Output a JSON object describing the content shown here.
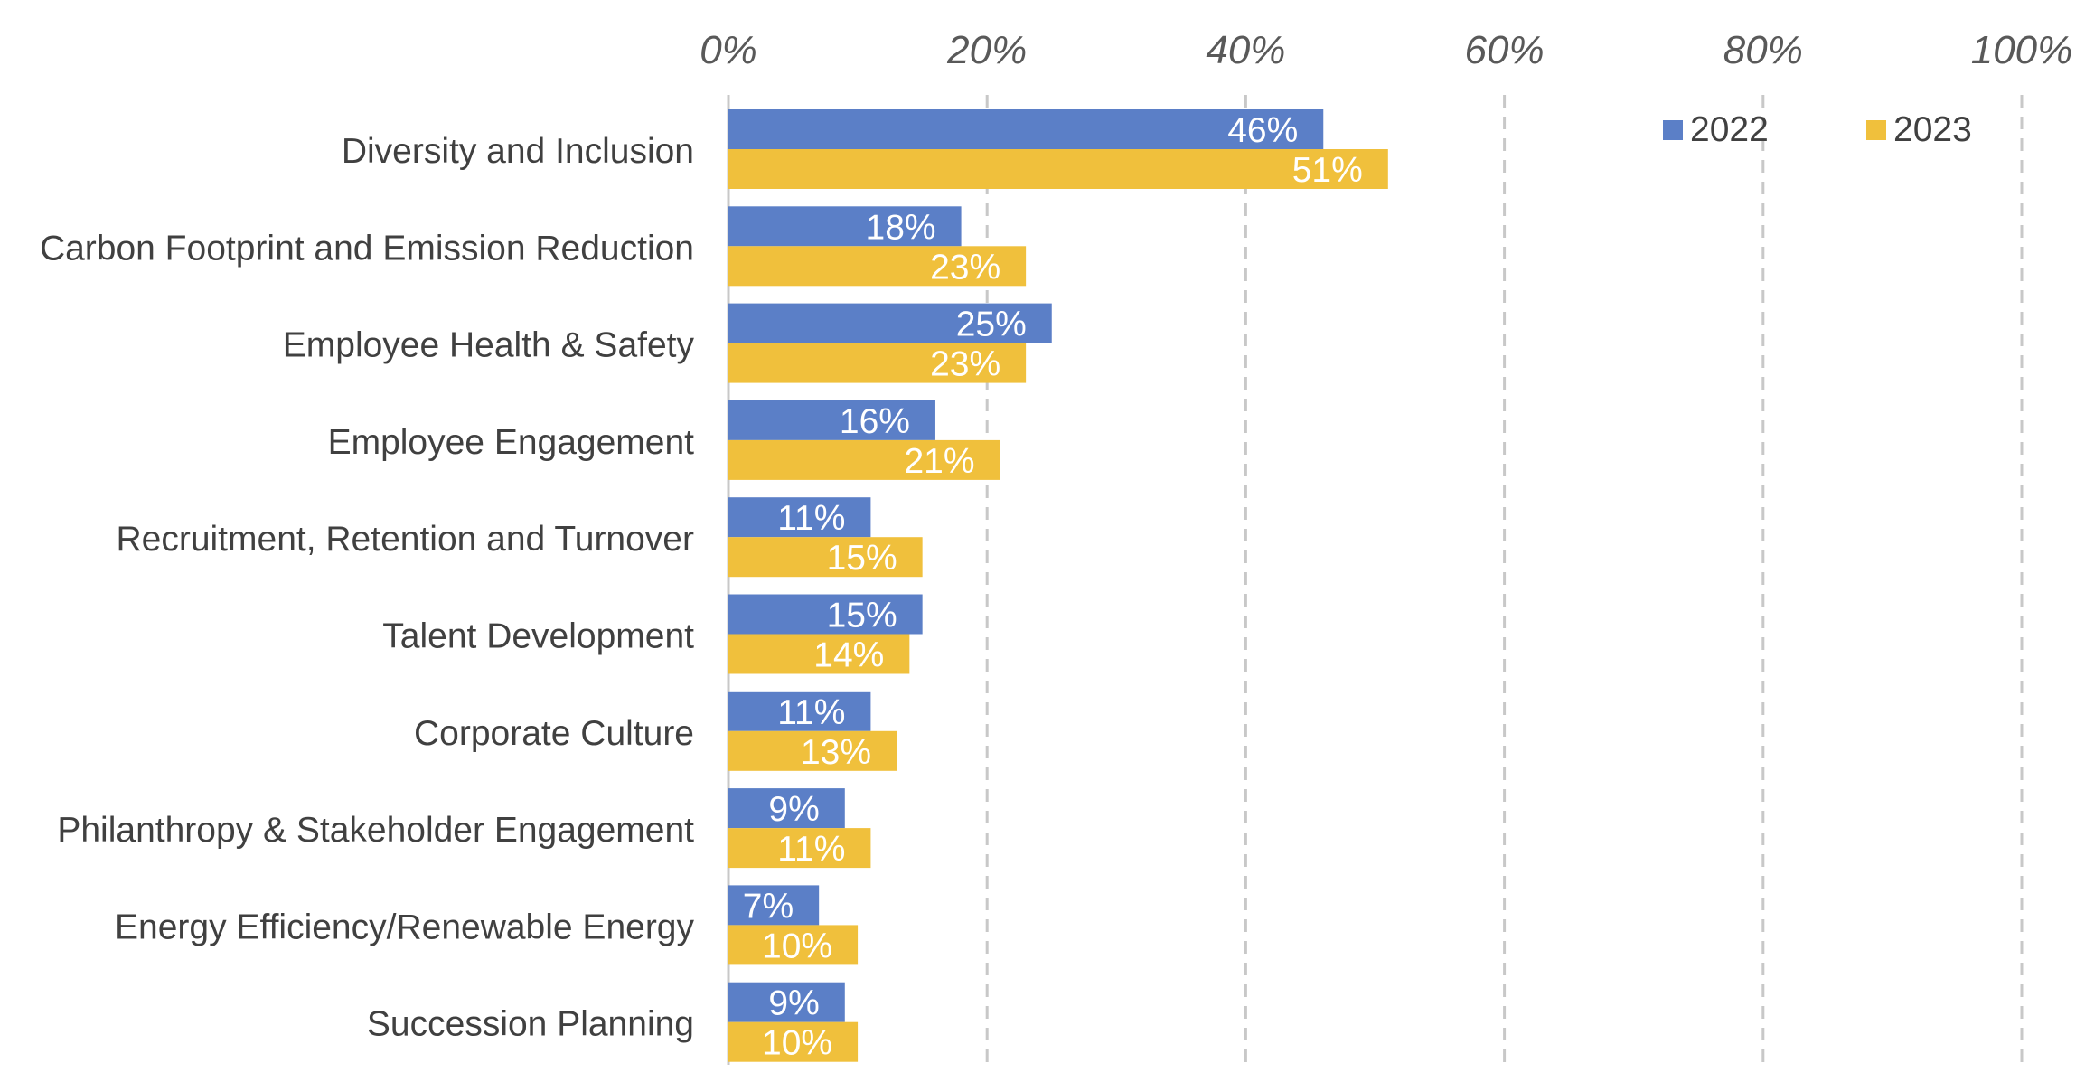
{
  "chart_data": {
    "type": "bar",
    "orientation": "horizontal",
    "categories": [
      "Diversity and Inclusion",
      "Carbon Footprint and Emission Reduction",
      "Employee Health & Safety",
      "Employee Engagement",
      "Recruitment, Retention and Turnover",
      "Talent Development",
      "Corporate Culture",
      "Philanthropy & Stakeholder Engagement",
      "Energy Efficiency/Renewable Energy",
      "Succession Planning"
    ],
    "series": [
      {
        "name": "2022",
        "color": "#5B7FC7",
        "values": [
          46,
          18,
          25,
          16,
          11,
          15,
          11,
          9,
          7,
          9
        ],
        "labels": [
          "46%",
          "18%",
          "25%",
          "16%",
          "11%",
          "15%",
          "11%",
          "9%",
          "7%",
          "9%"
        ]
      },
      {
        "name": "2023",
        "color": "#F0C03C",
        "values": [
          51,
          23,
          23,
          21,
          15,
          14,
          13,
          11,
          10,
          10
        ],
        "labels": [
          "51%",
          "23%",
          "23%",
          "21%",
          "15%",
          "14%",
          "13%",
          "11%",
          "10%",
          "10%"
        ]
      }
    ],
    "xlim": [
      0,
      100
    ],
    "xticks": [
      "0%",
      "20%",
      "40%",
      "60%",
      "80%",
      "100%"
    ],
    "xtick_values": [
      0,
      20,
      40,
      60,
      80,
      100
    ],
    "x_axis_position": "top",
    "grid": "vertical dashed",
    "legend_position": "top-right",
    "title": "",
    "xlabel": "",
    "ylabel": ""
  }
}
